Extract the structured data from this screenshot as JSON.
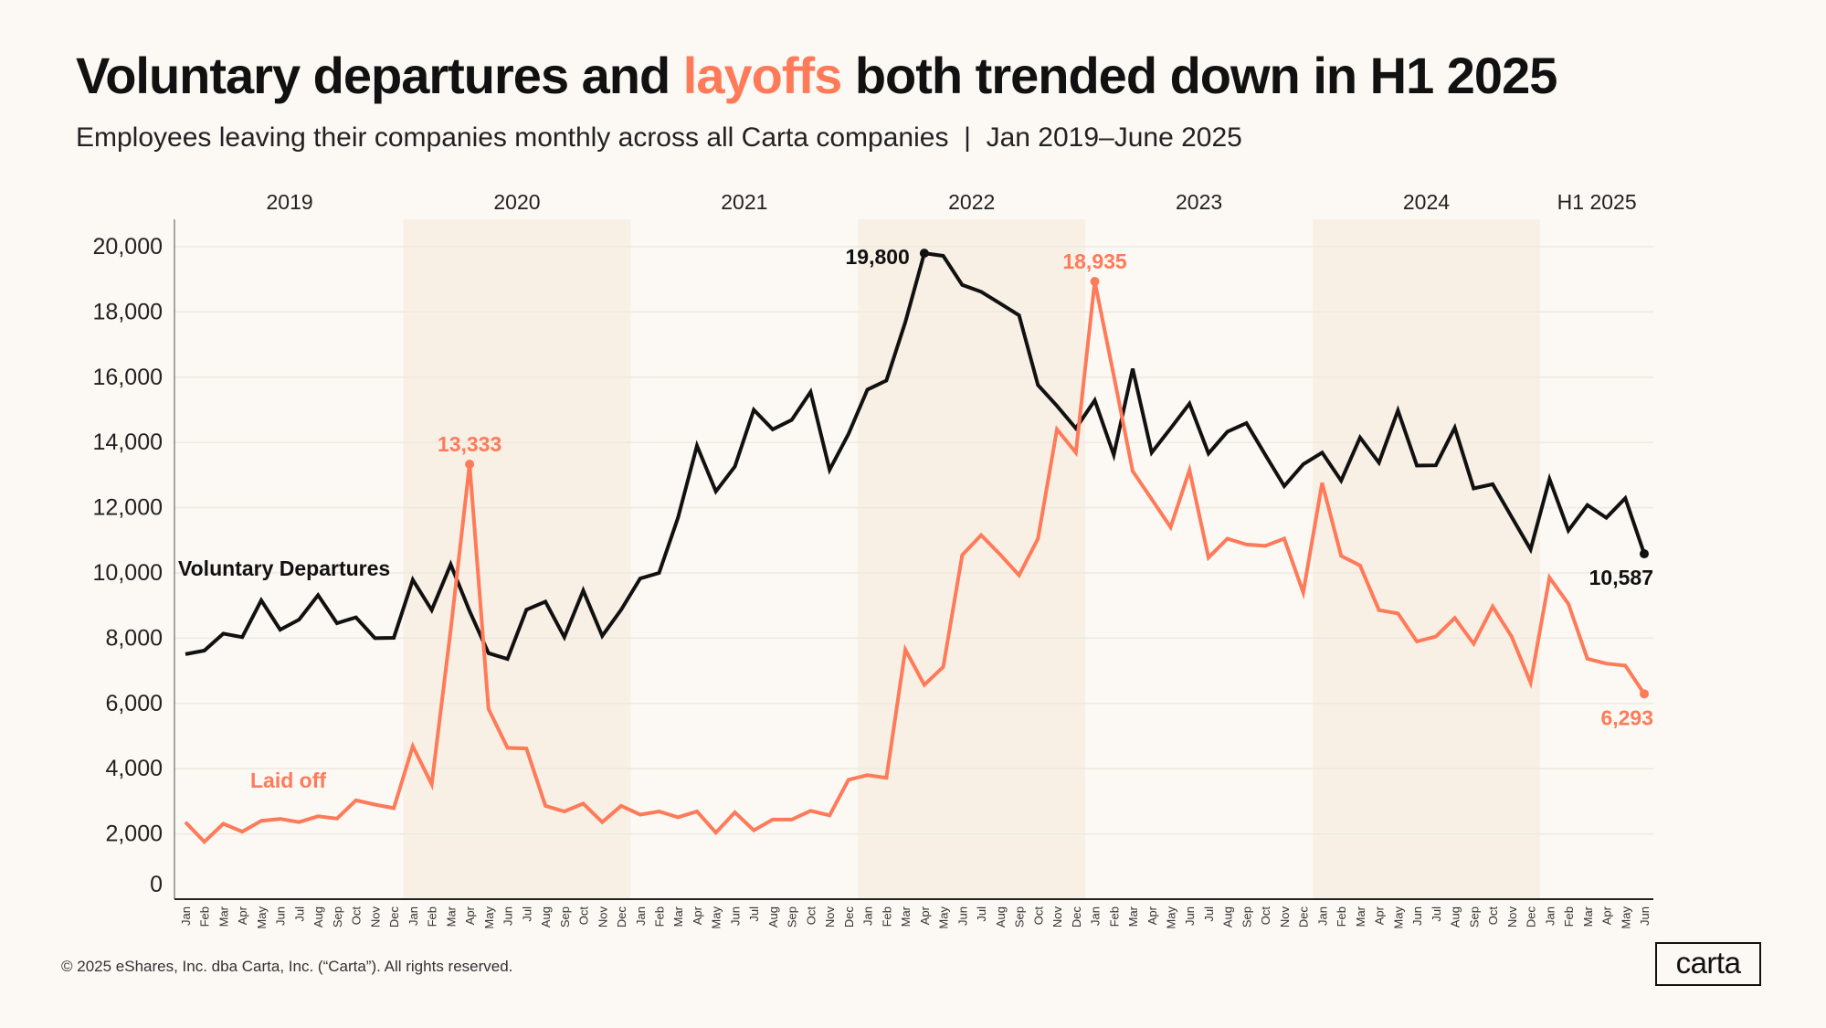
{
  "title": {
    "part1": "Voluntary departures and ",
    "highlight": "layoffs",
    "part2": " both trended down in H1 2025"
  },
  "subtitle": "Employees leaving their companies monthly across all Carta companies  |  Jan 2019–June 2025",
  "footer": "© 2025 eShares, Inc. dba Carta, Inc. (“Carta”). All rights reserved.",
  "logo": "carta",
  "colors": {
    "background": "#fcf9f4",
    "band": "#f8f0e5",
    "voluntary": "#111111",
    "laid_off": "#ff7a59"
  },
  "chart_data": {
    "type": "line",
    "title": "Voluntary departures and layoffs both trended down in H1 2025",
    "ylim": [
      0,
      20000
    ],
    "yticks": [
      "0",
      "2,000",
      "4,000",
      "6,000",
      "8,000",
      "10,000",
      "12,000",
      "14,000",
      "16,000",
      "18,000",
      "20,000"
    ],
    "ytick_values": [
      0,
      2000,
      4000,
      6000,
      8000,
      10000,
      12000,
      14000,
      16000,
      18000,
      20000
    ],
    "grid": true,
    "year_labels": [
      "2019",
      "2020",
      "2021",
      "2022",
      "2023",
      "2024",
      "H1 2025"
    ],
    "shaded_years": [
      "2020",
      "2022",
      "2024"
    ],
    "month_names": [
      "Jan",
      "Feb",
      "Mar",
      "Apr",
      "May",
      "Jun",
      "Jul",
      "Aug",
      "Sep",
      "Oct",
      "Nov",
      "Dec"
    ],
    "start": "2019-01",
    "end": "2025-06",
    "series": [
      {
        "name": "Voluntary Departures",
        "color": "#111111",
        "values": [
          7510,
          7620,
          8140,
          8030,
          9160,
          8260,
          8570,
          9320,
          8460,
          8640,
          8000,
          8010,
          9790,
          8860,
          10260,
          8830,
          7540,
          7360,
          8870,
          9120,
          8030,
          9460,
          8070,
          8870,
          9830,
          10000,
          11690,
          13900,
          12500,
          13260,
          15000,
          14400,
          14690,
          15550,
          13160,
          14260,
          15620,
          15900,
          17690,
          19800,
          19720,
          18830,
          18620,
          18260,
          17900,
          15760,
          15120,
          14430,
          15290,
          13620,
          16260,
          13690,
          14430,
          15190,
          13660,
          14330,
          14590,
          13620,
          12660,
          13330,
          13690,
          12830,
          14150,
          13380,
          14980,
          13290,
          13300,
          14450,
          12590,
          12720,
          11720,
          10720,
          12880,
          11300,
          12080,
          11690,
          12290,
          10587
        ]
      },
      {
        "name": "Laid off",
        "color": "#ff7a59",
        "values": [
          2360,
          1760,
          2310,
          2070,
          2400,
          2460,
          2360,
          2540,
          2470,
          3030,
          2900,
          2790,
          4690,
          3520,
          8260,
          13333,
          5830,
          4640,
          4620,
          2860,
          2690,
          2930,
          2360,
          2860,
          2590,
          2690,
          2510,
          2690,
          2040,
          2660,
          2110,
          2440,
          2440,
          2710,
          2570,
          3660,
          3800,
          3720,
          7650,
          6570,
          7120,
          10550,
          11160,
          10570,
          9930,
          11050,
          14400,
          13690,
          18935,
          16050,
          13120,
          12260,
          11400,
          13150,
          10470,
          11050,
          10870,
          10830,
          11050,
          9400,
          12760,
          10520,
          10230,
          8860,
          8760,
          7900,
          8050,
          8620,
          7830,
          8970,
          8050,
          6640,
          9860,
          9050,
          7370,
          7220,
          7160,
          6293
        ]
      }
    ],
    "annotations": [
      {
        "series": "Voluntary Departures",
        "date": "2022-04",
        "value": 19800,
        "label": "19,800"
      },
      {
        "series": "Voluntary Departures",
        "date": "2025-06",
        "value": 10587,
        "label": "10,587"
      },
      {
        "series": "Laid off",
        "date": "2020-04",
        "value": 13333,
        "label": "13,333"
      },
      {
        "series": "Laid off",
        "date": "2023-01",
        "value": 18935,
        "label": "18,935"
      },
      {
        "series": "Laid off",
        "date": "2025-06",
        "value": 6293,
        "label": "6,293"
      }
    ]
  }
}
